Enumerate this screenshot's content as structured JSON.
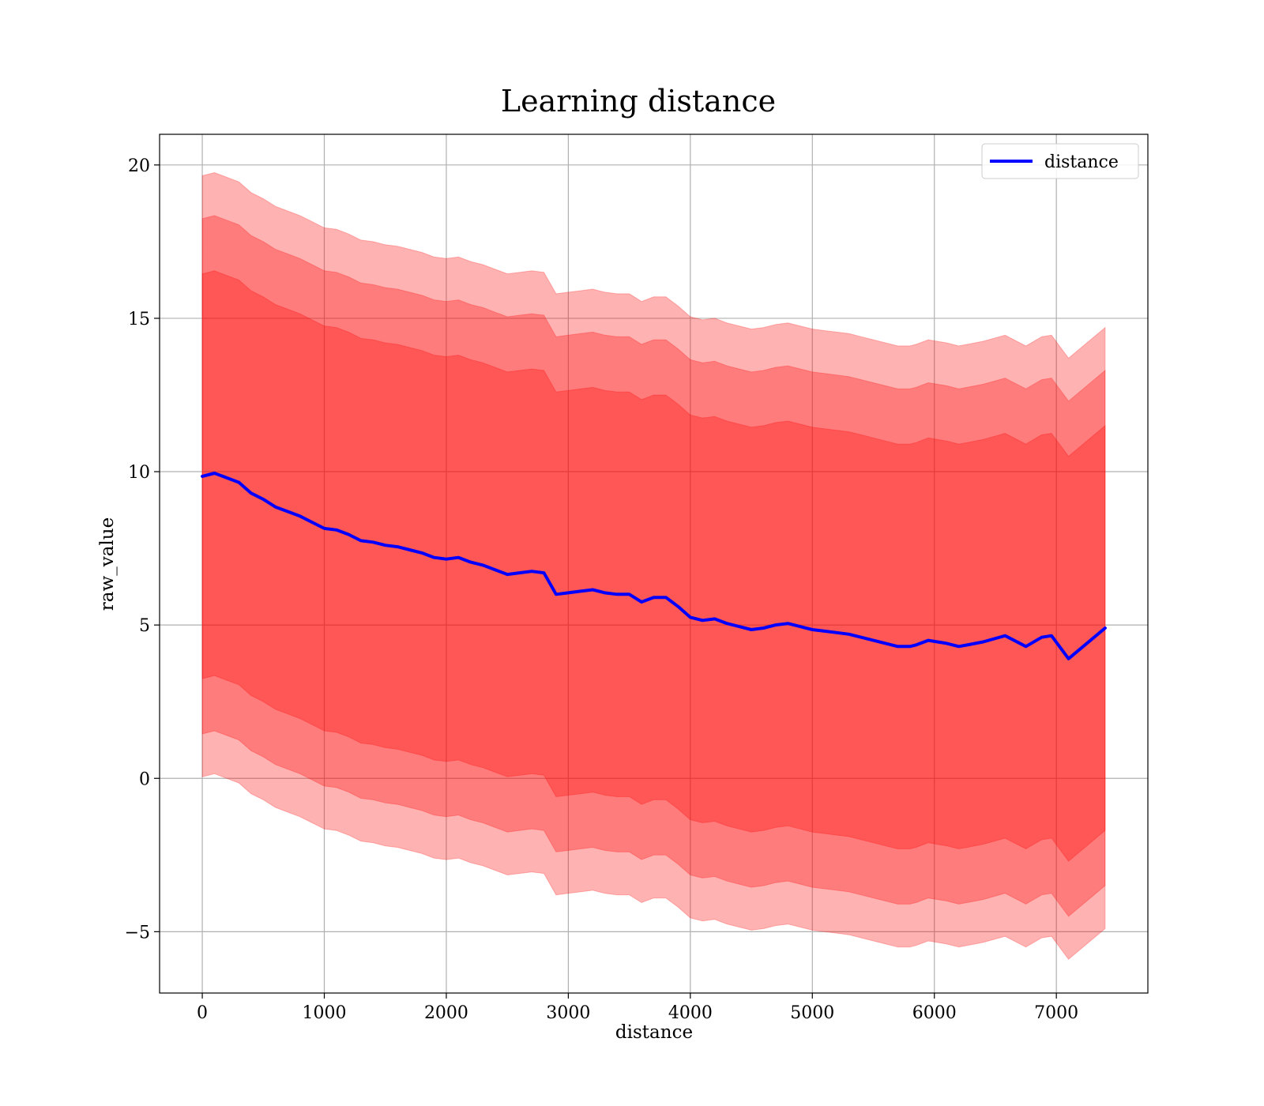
{
  "chart_data": {
    "type": "line",
    "title": "Learning distance",
    "xlabel": "distance",
    "ylabel": "raw_value",
    "xlim": [
      -350,
      7750
    ],
    "ylim": [
      -7,
      21
    ],
    "xticks": [
      0,
      1000,
      2000,
      3000,
      4000,
      5000,
      6000,
      7000
    ],
    "yticks": [
      -5,
      0,
      5,
      10,
      15,
      20
    ],
    "ytick_labels": [
      "−5",
      "0",
      "5",
      "10",
      "15",
      "20"
    ],
    "grid": true,
    "legend": {
      "position": "top-right",
      "entries": [
        "distance"
      ]
    },
    "colors": {
      "line": "#0000ff",
      "band": "#ff0000",
      "grid": "#b0b0b0"
    },
    "series": [
      {
        "name": "distance",
        "x": [
          0,
          100,
          200,
          300,
          400,
          500,
          600,
          700,
          800,
          900,
          1000,
          1100,
          1200,
          1300,
          1400,
          1500,
          1600,
          1700,
          1800,
          1900,
          2000,
          2100,
          2200,
          2300,
          2400,
          2500,
          2600,
          2700,
          2800,
          2900,
          3000,
          3100,
          3200,
          3300,
          3400,
          3500,
          3600,
          3700,
          3800,
          3900,
          4000,
          4100,
          4200,
          4300,
          4400,
          4500,
          4600,
          4700,
          4800,
          4900,
          5000,
          5100,
          5200,
          5300,
          5400,
          5500,
          5600,
          5700,
          5800,
          5850,
          5950,
          6100,
          6200,
          6270,
          6400,
          6580,
          6750,
          6880,
          6960,
          7100,
          7400
        ],
        "y": [
          9.85,
          9.95,
          9.8,
          9.65,
          9.3,
          9.1,
          8.85,
          8.7,
          8.55,
          8.35,
          8.15,
          8.1,
          7.95,
          7.75,
          7.7,
          7.6,
          7.55,
          7.45,
          7.35,
          7.2,
          7.15,
          7.2,
          7.05,
          6.95,
          6.8,
          6.65,
          6.7,
          6.75,
          6.7,
          6.0,
          6.05,
          6.1,
          6.15,
          6.05,
          6.0,
          6.0,
          5.75,
          5.9,
          5.9,
          5.6,
          5.25,
          5.15,
          5.2,
          5.05,
          4.95,
          4.85,
          4.9,
          5.0,
          5.05,
          4.95,
          4.85,
          4.8,
          4.75,
          4.7,
          4.6,
          4.5,
          4.4,
          4.3,
          4.3,
          4.35,
          4.5,
          4.4,
          4.3,
          4.35,
          4.45,
          4.65,
          4.3,
          4.6,
          4.65,
          3.9,
          4.9
        ],
        "band_half_widths": [
          9.8,
          8.4,
          6.6
        ]
      }
    ]
  }
}
